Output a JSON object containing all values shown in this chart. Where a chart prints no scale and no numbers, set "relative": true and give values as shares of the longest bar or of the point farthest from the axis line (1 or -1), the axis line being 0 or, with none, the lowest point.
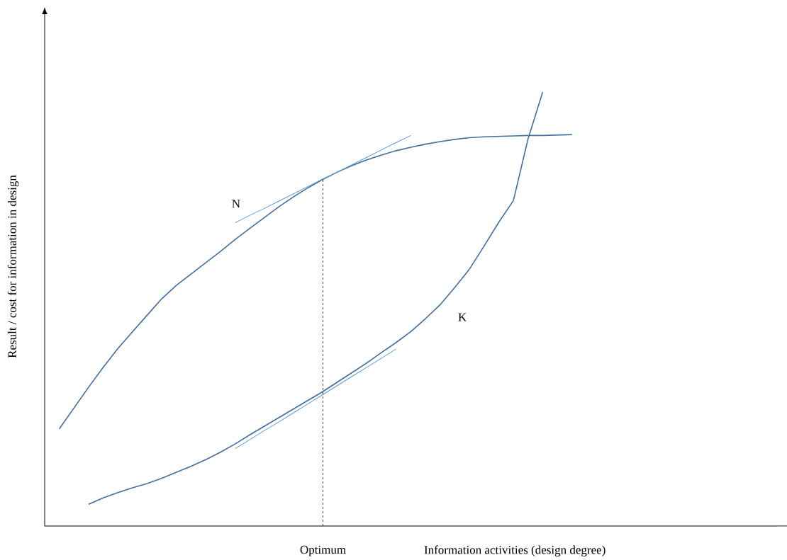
{
  "chart_data": {
    "type": "line",
    "relative": true,
    "xlabel": "Information activities (design degree)",
    "ylabel": "Result / cost for information in design",
    "marker": "none",
    "categories": [
      null,
      null,
      null,
      null,
      null,
      null,
      null,
      null,
      null,
      null,
      null,
      null,
      null,
      null,
      null,
      null,
      null,
      null,
      null,
      null,
      null,
      null,
      null,
      null,
      null,
      null,
      null,
      null,
      null,
      null,
      null,
      null,
      null,
      null,
      null,
      null,
      null
    ],
    "annotations": [
      "Optimum"
    ],
    "series": [
      {
        "name": "N",
        "color": "#3f6fa0",
        "values": [
          0.224,
          0.272,
          0.32,
          0.366,
          0.409,
          0.448,
          0.486,
          0.524,
          0.555,
          0.581,
          0.607,
          0.633,
          0.66,
          0.686,
          0.711,
          0.736,
          0.759,
          0.78,
          0.799,
          0.816,
          0.831,
          0.844,
          0.855,
          0.865,
          0.873,
          0.88,
          0.886,
          0.891,
          0.895,
          0.897,
          0.898,
          0.899,
          0.9,
          0.9,
          0.901,
          0.902,
          null
        ]
      },
      {
        "name": "K",
        "color": "#3f6fa0",
        "values": [
          null,
          null,
          0.05,
          0.065,
          0.077,
          0.088,
          0.098,
          0.11,
          0.124,
          0.138,
          0.153,
          0.17,
          0.189,
          0.21,
          0.23,
          0.25,
          0.27,
          0.29,
          0.31,
          0.332,
          0.354,
          0.376,
          0.4,
          0.423,
          0.448,
          0.478,
          0.51,
          0.55,
          0.592,
          0.645,
          0.7,
          0.75,
          0.892,
          1.0,
          null,
          null,
          null
        ]
      },
      {
        "color": "#5b9bd5",
        "values": [
          null,
          null,
          null,
          null,
          null,
          null,
          null,
          null,
          null,
          null,
          null,
          null,
          0.699,
          0.716,
          0.732,
          0.749,
          0.766,
          0.783,
          0.8,
          0.816,
          0.833,
          0.85,
          0.867,
          0.884,
          0.9,
          null,
          null,
          null,
          null,
          null,
          null,
          null,
          null,
          null,
          null,
          null,
          null
        ]
      },
      {
        "color": "#5b9bd5",
        "values": [
          null,
          null,
          null,
          null,
          null,
          null,
          null,
          null,
          null,
          null,
          null,
          null,
          0.178,
          0.199,
          0.22,
          0.24,
          0.261,
          0.282,
          0.303,
          0.324,
          0.345,
          0.366,
          0.387,
          0.408,
          null,
          null,
          null,
          null,
          null,
          null,
          null,
          null,
          null,
          null,
          null,
          null,
          null
        ]
      }
    ]
  }
}
